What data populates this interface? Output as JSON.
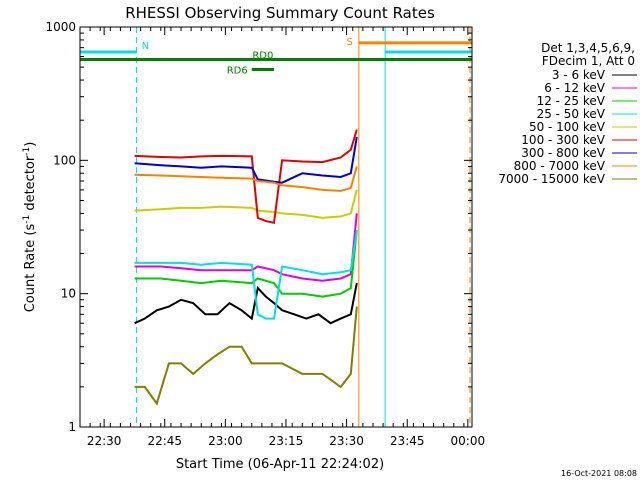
{
  "chart_data": {
    "type": "line",
    "title": "RHESSI Observing Summary Count Rates",
    "xlabel": "Start Time (06-Apr-11 22:24:02)",
    "ylabel": "Count Rate (s",
    "ylabel_sup1": "-1",
    "ylabel_mid": " detector",
    "ylabel_sup2": "-1",
    "ylabel_end": ")",
    "x_unit": "minutes since 22:24:02",
    "x_range": [
      0,
      97
    ],
    "ylim": [
      1,
      1000
    ],
    "yscale": "log",
    "x_ticks": [
      {
        "label": "22:30",
        "x": 5.97
      },
      {
        "label": "22:45",
        "x": 20.97
      },
      {
        "label": "23:00",
        "x": 35.97
      },
      {
        "label": "23:15",
        "x": 50.97
      },
      {
        "label": "23:30",
        "x": 65.97
      },
      {
        "label": "23:45",
        "x": 80.97
      },
      {
        "label": "00:00",
        "x": 95.97
      }
    ],
    "y_ticks": [
      {
        "label": "1",
        "y": 1
      },
      {
        "label": "10",
        "y": 10
      },
      {
        "label": "100",
        "y": 100
      },
      {
        "label": "1000",
        "y": 1000
      }
    ],
    "legend": {
      "position": "right",
      "header": [
        "Det 1,3,4,5,6,9,",
        "FDecim 1, Att 0"
      ]
    },
    "series": [
      {
        "name": "3 - 6 keV",
        "color": "#000000",
        "x": [
          13.5,
          16,
          19,
          22,
          25,
          28,
          31,
          34,
          37,
          40,
          42.5,
          44,
          46,
          48,
          50,
          53,
          56,
          59,
          62,
          64.5,
          67,
          68.5
        ],
        "y": [
          6,
          6.5,
          7.5,
          8,
          9,
          8.5,
          7,
          7,
          8.5,
          7.5,
          6.5,
          11,
          9.5,
          8.5,
          7.5,
          7,
          6.5,
          7,
          6,
          6.5,
          7,
          12
        ]
      },
      {
        "name": "6 - 12 keV",
        "color": "#e000e0",
        "x": [
          13.5,
          20,
          25,
          30,
          35,
          42.5,
          44,
          48,
          50,
          55,
          60,
          64.5,
          67,
          68.5
        ],
        "y": [
          16,
          16,
          15.5,
          15,
          15,
          15,
          16,
          15,
          14,
          13,
          12.5,
          13,
          14,
          40
        ]
      },
      {
        "name": "12 - 25 keV",
        "color": "#00cc00",
        "x": [
          13.5,
          20,
          25,
          30,
          35,
          42.5,
          44,
          48,
          50,
          55,
          60,
          64.5,
          67,
          68.5
        ],
        "y": [
          13,
          13,
          12.5,
          12,
          12.5,
          12,
          13,
          12,
          10,
          10,
          9.5,
          10,
          11,
          30
        ]
      },
      {
        "name": "25 - 50 keV",
        "color": "#00e0e0",
        "x": [
          13.5,
          20,
          25,
          30,
          35,
          42.5,
          44,
          46,
          48,
          50,
          55,
          60,
          64.5,
          67,
          68.5
        ],
        "y": [
          17,
          17,
          17,
          16.5,
          17,
          16.5,
          7,
          6.5,
          6.5,
          16,
          15,
          14,
          14.5,
          15,
          30
        ]
      },
      {
        "name": "50 - 100 keV",
        "color": "#cccc00",
        "x": [
          13.5,
          20,
          25,
          30,
          35,
          42.5,
          44,
          48,
          50,
          55,
          60,
          64.5,
          67,
          68.5
        ],
        "y": [
          42,
          43,
          44,
          44,
          45,
          44,
          42,
          41,
          40,
          39,
          37,
          38,
          40,
          60
        ]
      },
      {
        "name": "100 - 300 keV",
        "color": "#e00000",
        "x": [
          13.5,
          20,
          25,
          30,
          35,
          42.5,
          44,
          46,
          48,
          50,
          55,
          60,
          64.5,
          67,
          68.5
        ],
        "y": [
          108,
          106,
          105,
          107,
          108,
          107,
          37,
          35,
          34,
          100,
          98,
          97,
          105,
          120,
          170
        ]
      },
      {
        "name": "300 - 800 keV",
        "color": "#0000cc",
        "x": [
          13.5,
          20,
          25,
          30,
          35,
          42.5,
          44,
          48,
          50,
          55,
          60,
          64.5,
          67,
          68.5
        ],
        "y": [
          95,
          92,
          90,
          88,
          90,
          88,
          72,
          69,
          68,
          80,
          77,
          75,
          80,
          150
        ]
      },
      {
        "name": "800 - 7000 keV",
        "color": "#ff8000",
        "x": [
          13.5,
          20,
          25,
          30,
          35,
          42.5,
          44,
          48,
          50,
          55,
          60,
          64.5,
          67,
          68.5
        ],
        "y": [
          78,
          77,
          76,
          75,
          74,
          73,
          70,
          68,
          65,
          63,
          60,
          59,
          62,
          90
        ]
      },
      {
        "name": "7000 - 15000 keV",
        "color": "#808000",
        "x": [
          13.5,
          16,
          19,
          22,
          25,
          28,
          31,
          34,
          37,
          40,
          42.5,
          44,
          48,
          50,
          55,
          60,
          64.5,
          67,
          68.5
        ],
        "y": [
          2,
          2,
          1.5,
          3,
          3,
          2.5,
          3,
          3.5,
          4,
          4,
          3,
          3,
          3,
          3,
          2.5,
          2.5,
          2,
          2.5,
          8
        ]
      }
    ],
    "annotations": {
      "top_bars": [
        {
          "label": "N",
          "color": "#00e0e0",
          "x0": 0,
          "x1": 14,
          "y": 650
        },
        {
          "label": "S",
          "color": "#ff8000",
          "x0": 69,
          "x1": 97,
          "y": 760
        },
        {
          "label": "",
          "color": "#00e0e0",
          "x0": 75.5,
          "x1": 97,
          "y": 650
        },
        {
          "label": "RD0",
          "color": "#008000",
          "x0": 0,
          "x1": 97,
          "y": 570
        },
        {
          "label": "RD6",
          "color": "#008000",
          "x0": 42.5,
          "x1": 48,
          "y": 480
        }
      ],
      "vlines": [
        {
          "color": "#00e0e0",
          "style": "dashed",
          "x": 14
        },
        {
          "color": "#ff8000",
          "style": "solid",
          "x": 69
        },
        {
          "color": "#00e0e0",
          "style": "solid",
          "x": 75.5
        },
        {
          "color": "#00e0e0",
          "style": "solid",
          "x": 0
        },
        {
          "color": "#ff8000",
          "style": "dashed",
          "x": 96.5
        }
      ]
    },
    "timestamp": "16-Oct-2021 08:08"
  }
}
